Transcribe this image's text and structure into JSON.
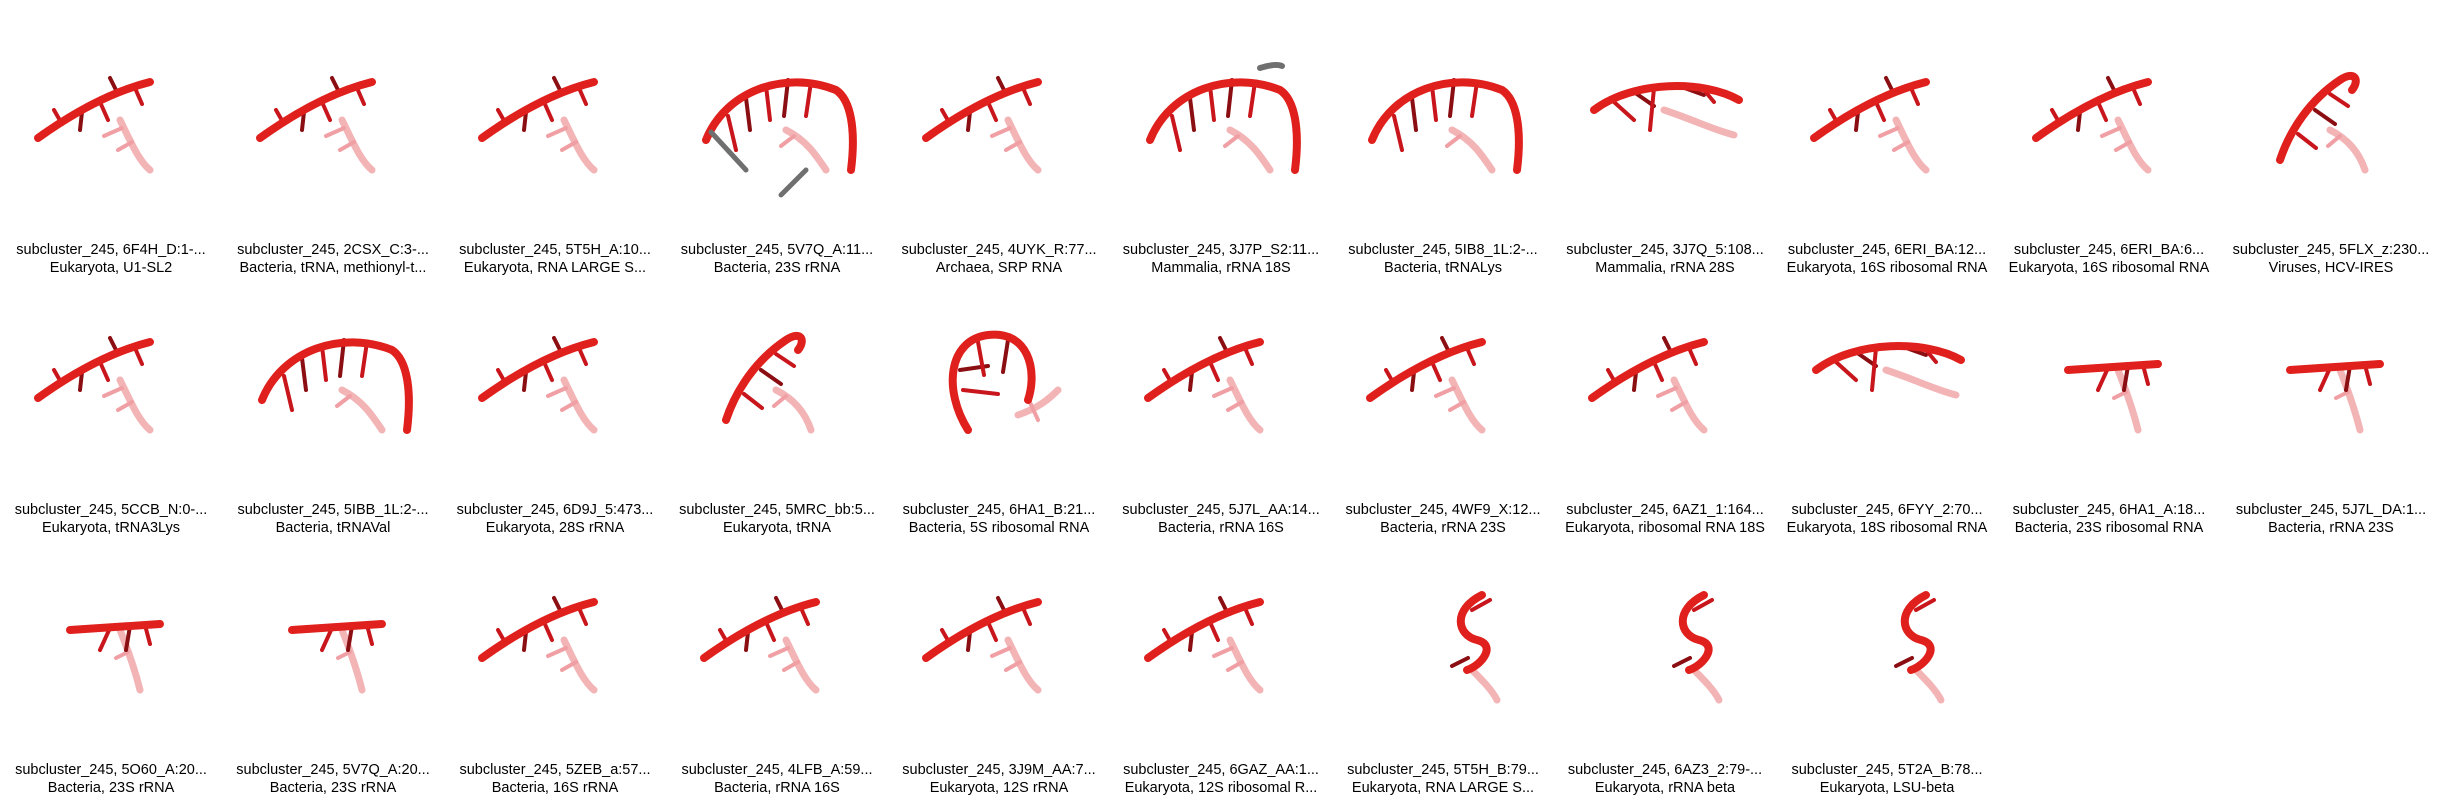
{
  "structures": [
    {
      "title": "subcluster_245, 6F4H_D:1-...",
      "subtitle": "Eukaryota, U1-SL2"
    },
    {
      "title": "subcluster_245, 2CSX_C:3-...",
      "subtitle": "Bacteria, tRNA, methionyl-t..."
    },
    {
      "title": "subcluster_245, 5T5H_A:10...",
      "subtitle": "Eukaryota, RNA LARGE S..."
    },
    {
      "title": "subcluster_245, 5V7Q_A:11...",
      "subtitle": "Bacteria, 23S rRNA"
    },
    {
      "title": "subcluster_245, 4UYK_R:77...",
      "subtitle": "Archaea, SRP RNA"
    },
    {
      "title": "subcluster_245, 3J7P_S2:11...",
      "subtitle": "Mammalia, rRNA 18S"
    },
    {
      "title": "subcluster_245, 5IB8_1L:2-...",
      "subtitle": "Bacteria, tRNALys"
    },
    {
      "title": "subcluster_245, 3J7Q_5:108...",
      "subtitle": "Mammalia, rRNA 28S"
    },
    {
      "title": "subcluster_245, 6ERI_BA:12...",
      "subtitle": "Eukaryota, 16S ribosomal RNA"
    },
    {
      "title": "subcluster_245, 6ERI_BA:6...",
      "subtitle": "Eukaryota, 16S ribosomal RNA"
    },
    {
      "title": "subcluster_245, 5FLX_z:230...",
      "subtitle": "Viruses, HCV-IRES"
    },
    {
      "title": "subcluster_245, 5CCB_N:0-...",
      "subtitle": "Eukaryota, tRNA3Lys"
    },
    {
      "title": "subcluster_245, 5IBB_1L:2-...",
      "subtitle": "Bacteria, tRNAVal"
    },
    {
      "title": "subcluster_245, 6D9J_5:473...",
      "subtitle": "Eukaryota, 28S rRNA"
    },
    {
      "title": "subcluster_245, 5MRC_bb:5...",
      "subtitle": "Eukaryota, tRNA"
    },
    {
      "title": "subcluster_245, 6HA1_B:21...",
      "subtitle": "Bacteria, 5S ribosomal RNA"
    },
    {
      "title": "subcluster_245, 5J7L_AA:14...",
      "subtitle": "Bacteria, rRNA 16S"
    },
    {
      "title": "subcluster_245, 4WF9_X:12...",
      "subtitle": "Bacteria, rRNA 23S"
    },
    {
      "title": "subcluster_245, 6AZ1_1:164...",
      "subtitle": "Eukaryota, ribosomal RNA 18S"
    },
    {
      "title": "subcluster_245, 6FYY_2:70...",
      "subtitle": "Eukaryota, 18S ribosomal RNA"
    },
    {
      "title": "subcluster_245, 6HA1_A:18...",
      "subtitle": "Bacteria, 23S ribosomal RNA"
    },
    {
      "title": "subcluster_245, 5J7L_DA:1...",
      "subtitle": "Bacteria, rRNA 23S"
    },
    {
      "title": "subcluster_245, 5O60_A:20...",
      "subtitle": "Bacteria, 23S rRNA"
    },
    {
      "title": "subcluster_245, 5V7Q_A:20...",
      "subtitle": "Bacteria, 23S rRNA"
    },
    {
      "title": "subcluster_245, 5ZEB_a:57...",
      "subtitle": "Bacteria, 16S rRNA"
    },
    {
      "title": "subcluster_245, 4LFB_A:59...",
      "subtitle": "Bacteria, rRNA 16S"
    },
    {
      "title": "subcluster_245, 3J9M_AA:7...",
      "subtitle": "Eukaryota, 12S rRNA"
    },
    {
      "title": "subcluster_245, 6GAZ_AA:1...",
      "subtitle": "Eukaryota, 12S ribosomal R..."
    },
    {
      "title": "subcluster_245, 5T5H_B:79...",
      "subtitle": "Eukaryota, RNA LARGE S..."
    },
    {
      "title": "subcluster_245, 6AZ3_2:79-...",
      "subtitle": "Eukaryota, rRNA beta"
    },
    {
      "title": "subcluster_245, 5T2A_B:78...",
      "subtitle": "Eukaryota, LSU-beta"
    }
  ],
  "colors": {
    "backbone": "#e0201c",
    "backbone_dark": "#b0141a",
    "rung": "#c8161c",
    "rung_dark": "#8a0e12",
    "rung_light": "#f0a0a4",
    "faded": "#f3b4b6",
    "gray": "#6f6f6f"
  }
}
